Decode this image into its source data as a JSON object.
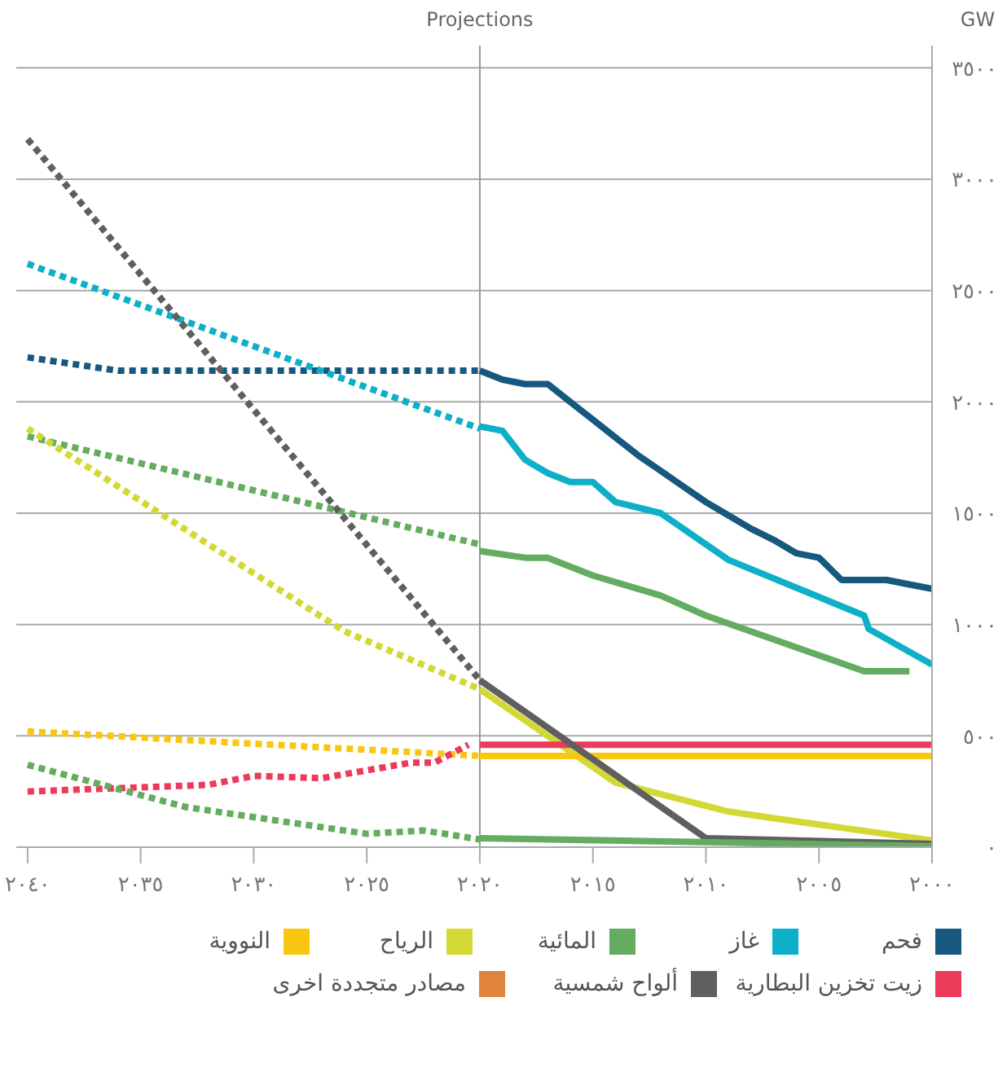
{
  "chart_data": {
    "type": "line",
    "ylabel": "GW",
    "xlim": [
      2040.5,
      2000
    ],
    "ylim": [
      0,
      3600
    ],
    "xticks": [
      {
        "value": 2040,
        "label": "٢٠٤٠"
      },
      {
        "value": 2035,
        "label": "٢٠٣٥"
      },
      {
        "value": 2030,
        "label": "٢٠٣٠"
      },
      {
        "value": 2025,
        "label": "٢٠٢٥"
      },
      {
        "value": 2020,
        "label": "٢٠٢٠"
      },
      {
        "value": 2015,
        "label": "٢٠١٥"
      },
      {
        "value": 2010,
        "label": "٢٠١٠"
      },
      {
        "value": 2005,
        "label": "٢٠٠٥"
      },
      {
        "value": 2000,
        "label": "٢٠٠٠"
      }
    ],
    "yticks": [
      {
        "value": 0,
        "label": "٠"
      },
      {
        "value": 500,
        "label": "٥٠٠"
      },
      {
        "value": 1000,
        "label": "١٠٠٠"
      },
      {
        "value": 1500,
        "label": "١٥٠٠"
      },
      {
        "value": 2000,
        "label": "٢٠٠٠"
      },
      {
        "value": 2500,
        "label": "٢٥٠٠"
      },
      {
        "value": 3000,
        "label": "٣٠٠٠"
      },
      {
        "value": 3500,
        "label": "٣٥٠٠"
      }
    ],
    "grid": "y",
    "legend": "bottom",
    "marker": "none",
    "ref_lines": [
      {
        "axis": "x",
        "value": 2020,
        "label": "Projections",
        "color": "#999999"
      }
    ],
    "series": [
      {
        "name": "فحم",
        "color": "#17587e",
        "line_style": "solid",
        "x": [
          2020,
          2019,
          2018,
          2017,
          2016,
          2015,
          2014,
          2013,
          2012,
          2011,
          2010,
          2009,
          2008,
          2007,
          2006,
          2005,
          2004,
          2003,
          2002,
          2001,
          2000
        ],
        "values": [
          2140,
          2100,
          2080,
          2080,
          2000,
          1920,
          1840,
          1760,
          1690,
          1620,
          1550,
          1490,
          1430,
          1380,
          1320,
          1300,
          1200,
          1200,
          1200,
          1180,
          1160
        ]
      },
      {
        "name": "غاز",
        "color": "#0eafc8",
        "line_style": "solid",
        "x": [
          2020,
          2019,
          2018,
          2017,
          2016,
          2015,
          2014,
          2012,
          2009,
          2003,
          2002.8,
          2000
        ],
        "values": [
          1890,
          1870,
          1740,
          1680,
          1640,
          1640,
          1550,
          1500,
          1290,
          1040,
          980,
          820
        ]
      },
      {
        "name": "المائية",
        "color": "#64ac5f",
        "line_style": "solid",
        "x": [
          2020,
          2018,
          2017,
          2015,
          2012,
          2010,
          2003,
          2001
        ],
        "values": [
          1330,
          1300,
          1300,
          1220,
          1130,
          1040,
          790,
          790
        ]
      },
      {
        "name": "الرياح",
        "color": "#d2d935",
        "line_style": "solid",
        "x": [
          2020,
          2014,
          2009,
          2007,
          2000
        ],
        "values": [
          710,
          290,
          160,
          130,
          30
        ]
      },
      {
        "name": "النووية",
        "color": "#f9c712",
        "line_style": "solid",
        "x": [
          2020,
          2000
        ],
        "values": [
          410,
          410
        ]
      },
      {
        "name": "زيت تخزين البطارية",
        "color": "#ec3b5a",
        "line_style": "solid",
        "x": [
          2020,
          2000
        ],
        "values": [
          460,
          460
        ]
      },
      {
        "name": "ألواح شمسية",
        "color": "#5f5f5f",
        "line_style": "solid",
        "x": [
          2020,
          2010,
          2000
        ],
        "values": [
          750,
          40,
          15
        ]
      },
      {
        "name": "مصادر متجددة اخرى",
        "color": "#e0843c",
        "line_style": "solid"
      },
      {
        "color": "#64ac5f",
        "line_style": "solid",
        "x": [
          2020,
          2000
        ],
        "values": [
          40,
          5
        ]
      },
      {
        "color": "#17587e",
        "line_style": "dotted",
        "x": [
          2040,
          2036,
          2020
        ],
        "values": [
          2200,
          2140,
          2140
        ]
      },
      {
        "color": "#0eafc8",
        "line_style": "dotted",
        "x": [
          2040,
          2020
        ],
        "values": [
          2620,
          1880
        ]
      },
      {
        "color": "#64ac5f",
        "line_style": "dotted",
        "x": [
          2040,
          2020
        ],
        "values": [
          1845,
          1360
        ]
      },
      {
        "color": "#d2d935",
        "line_style": "dotted",
        "x": [
          2040,
          2026,
          2020
        ],
        "values": [
          1880,
          970,
          710
        ]
      },
      {
        "color": "#f9c712",
        "line_style": "dotted",
        "x": [
          2040,
          2020
        ],
        "values": [
          520,
          410
        ]
      },
      {
        "color": "#ec3b5a",
        "line_style": "dotted",
        "x": [
          2040,
          2032,
          2030,
          2027,
          2023,
          2022,
          2020.5
        ],
        "values": [
          250,
          280,
          320,
          310,
          380,
          380,
          460
        ]
      },
      {
        "color": "#5f5f5f",
        "line_style": "dotted",
        "x": [
          2040,
          2020
        ],
        "values": [
          3180,
          750
        ]
      },
      {
        "color": "#64ac5f",
        "line_style": "dotted",
        "x": [
          2040,
          2033,
          2025,
          2022.5,
          2020
        ],
        "values": [
          370,
          180,
          60,
          75,
          35
        ]
      }
    ]
  }
}
